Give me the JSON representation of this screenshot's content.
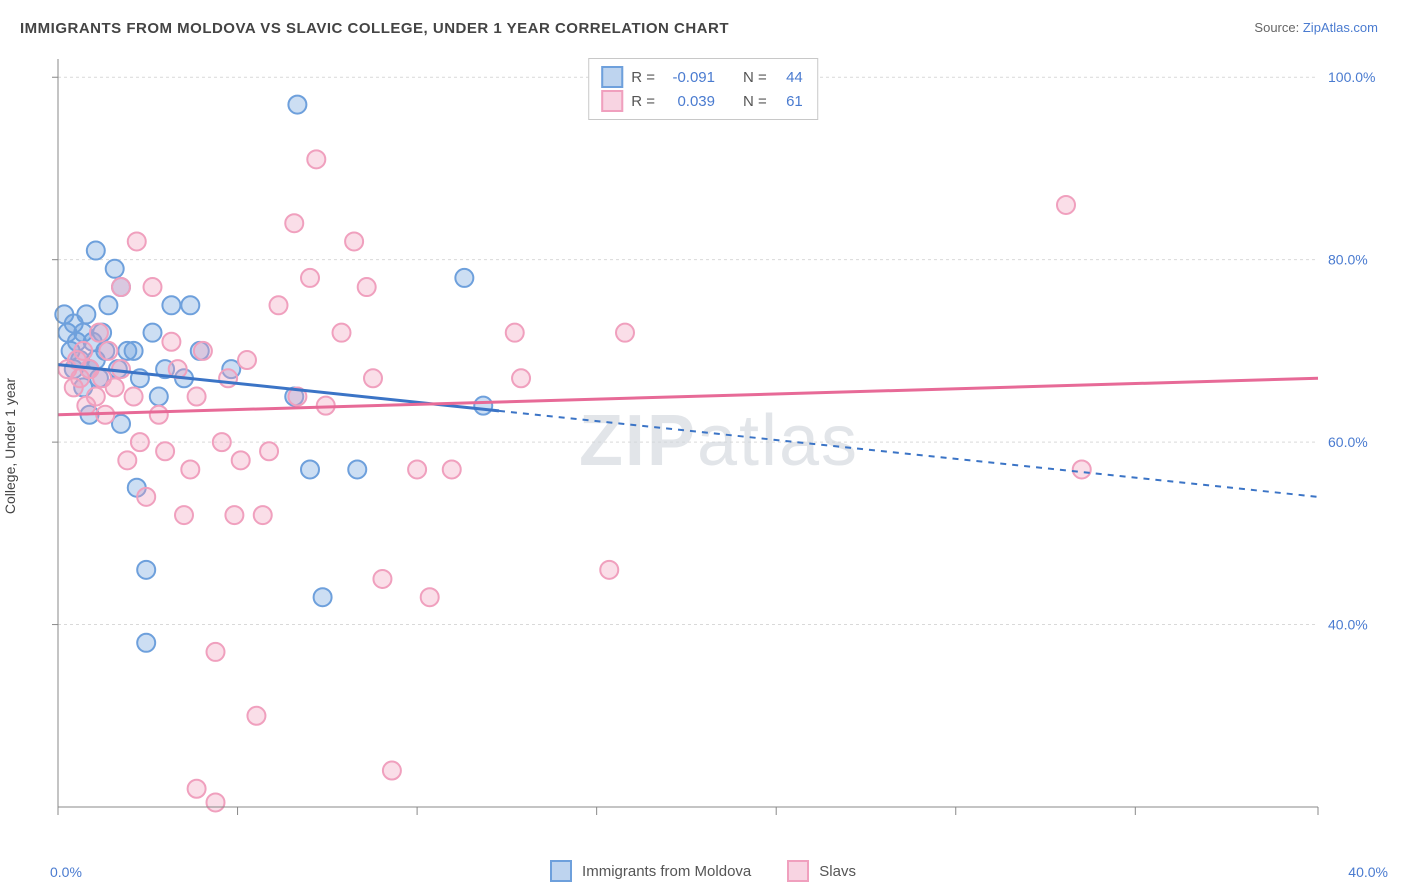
{
  "title": "IMMIGRANTS FROM MOLDOVA VS SLAVIC COLLEGE, UNDER 1 YEAR CORRELATION CHART",
  "source_label": "Source:",
  "source_name": "ZipAtlas.com",
  "ylabel": "College, Under 1 year",
  "watermark": {
    "a": "ZIP",
    "b": "atlas"
  },
  "chart": {
    "type": "scatter-with-regression",
    "background_color": "#ffffff",
    "grid_color": "#d9d9d9",
    "axis_color": "#888888",
    "tick_label_color": "#4a7bd0",
    "xlim": [
      0,
      40
    ],
    "ylim": [
      20,
      102
    ],
    "xtick_positions": [
      0,
      5.7,
      11.4,
      17.1,
      22.8,
      28.5,
      34.2,
      40
    ],
    "xtick_labels": [
      "0.0%",
      "",
      "",
      "",
      "",
      "",
      "",
      "40.0%"
    ],
    "ytick_positions": [
      40,
      60,
      80,
      100
    ],
    "ytick_labels": [
      "40.0%",
      "60.0%",
      "80.0%",
      "100.0%"
    ],
    "marker_radius": 9,
    "marker_stroke_width": 2,
    "marker_fill_opacity": 0.35,
    "line_width": 3,
    "series": [
      {
        "name": "Immigrants from Moldova",
        "color": "#6ea0dc",
        "line_color": "#3b74c6",
        "R": "-0.091",
        "N": "44",
        "regression": {
          "x0": 0,
          "y0": 68.5,
          "x1": 40,
          "y1": 54.0,
          "solid_until_x": 14
        },
        "points": [
          [
            0.2,
            74
          ],
          [
            0.3,
            72
          ],
          [
            0.4,
            70
          ],
          [
            0.5,
            68
          ],
          [
            0.5,
            73
          ],
          [
            0.6,
            71
          ],
          [
            0.7,
            69
          ],
          [
            0.8,
            66
          ],
          [
            0.8,
            72
          ],
          [
            0.9,
            74
          ],
          [
            1.0,
            68
          ],
          [
            1.0,
            63
          ],
          [
            1.1,
            71
          ],
          [
            1.2,
            69
          ],
          [
            1.2,
            81
          ],
          [
            1.3,
            67
          ],
          [
            1.4,
            72
          ],
          [
            1.5,
            70
          ],
          [
            1.6,
            75
          ],
          [
            1.8,
            79
          ],
          [
            1.9,
            68
          ],
          [
            2.0,
            62
          ],
          [
            2.0,
            77
          ],
          [
            2.2,
            70
          ],
          [
            2.4,
            70
          ],
          [
            2.5,
            55
          ],
          [
            2.6,
            67
          ],
          [
            2.8,
            46
          ],
          [
            2.8,
            38
          ],
          [
            3.0,
            72
          ],
          [
            3.2,
            65
          ],
          [
            3.4,
            68
          ],
          [
            3.6,
            75
          ],
          [
            4.0,
            67
          ],
          [
            4.2,
            75
          ],
          [
            4.5,
            70
          ],
          [
            5.5,
            68
          ],
          [
            7.6,
            97
          ],
          [
            8.0,
            57
          ],
          [
            8.4,
            43
          ],
          [
            7.5,
            65
          ],
          [
            9.5,
            57
          ],
          [
            12.9,
            78
          ],
          [
            13.5,
            64
          ]
        ]
      },
      {
        "name": "Slavs",
        "color": "#f0a0be",
        "line_color": "#e76a97",
        "R": "0.039",
        "N": "61",
        "regression": {
          "x0": 0,
          "y0": 63.0,
          "x1": 40,
          "y1": 67.0,
          "solid_until_x": 40
        },
        "points": [
          [
            0.3,
            68
          ],
          [
            0.5,
            66
          ],
          [
            0.6,
            69
          ],
          [
            0.7,
            67
          ],
          [
            0.8,
            70
          ],
          [
            0.9,
            64
          ],
          [
            1.0,
            68
          ],
          [
            1.2,
            65
          ],
          [
            1.3,
            72
          ],
          [
            1.4,
            67
          ],
          [
            1.5,
            63
          ],
          [
            1.6,
            70
          ],
          [
            1.8,
            66
          ],
          [
            2.0,
            77
          ],
          [
            2.0,
            68
          ],
          [
            2.2,
            58
          ],
          [
            2.4,
            65
          ],
          [
            2.5,
            82
          ],
          [
            2.6,
            60
          ],
          [
            2.8,
            54
          ],
          [
            3.0,
            77
          ],
          [
            3.2,
            63
          ],
          [
            3.4,
            59
          ],
          [
            3.6,
            71
          ],
          [
            3.8,
            68
          ],
          [
            4.0,
            52
          ],
          [
            4.2,
            57
          ],
          [
            4.4,
            65
          ],
          [
            4.6,
            70
          ],
          [
            5.0,
            37
          ],
          [
            5.2,
            60
          ],
          [
            5.4,
            67
          ],
          [
            5.6,
            52
          ],
          [
            5.8,
            58
          ],
          [
            6.0,
            69
          ],
          [
            6.3,
            30
          ],
          [
            6.5,
            52
          ],
          [
            6.7,
            59
          ],
          [
            4.4,
            22
          ],
          [
            5.0,
            20.5
          ],
          [
            7.0,
            75
          ],
          [
            7.5,
            84
          ],
          [
            7.6,
            65
          ],
          [
            8.0,
            78
          ],
          [
            8.2,
            91
          ],
          [
            8.5,
            64
          ],
          [
            9.0,
            72
          ],
          [
            9.4,
            82
          ],
          [
            9.8,
            77
          ],
          [
            10.0,
            67
          ],
          [
            10.3,
            45
          ],
          [
            10.6,
            24
          ],
          [
            11.4,
            57
          ],
          [
            11.8,
            43
          ],
          [
            12.5,
            57
          ],
          [
            14.5,
            72
          ],
          [
            14.7,
            67
          ],
          [
            17.5,
            46
          ],
          [
            18.0,
            72
          ],
          [
            32.0,
            86
          ],
          [
            32.5,
            57
          ]
        ]
      }
    ]
  },
  "legend_top": {
    "R_label": "R =",
    "N_label": "N ="
  },
  "legend_bottom_label_a": "Immigrants from Moldova",
  "legend_bottom_label_b": "Slavs"
}
